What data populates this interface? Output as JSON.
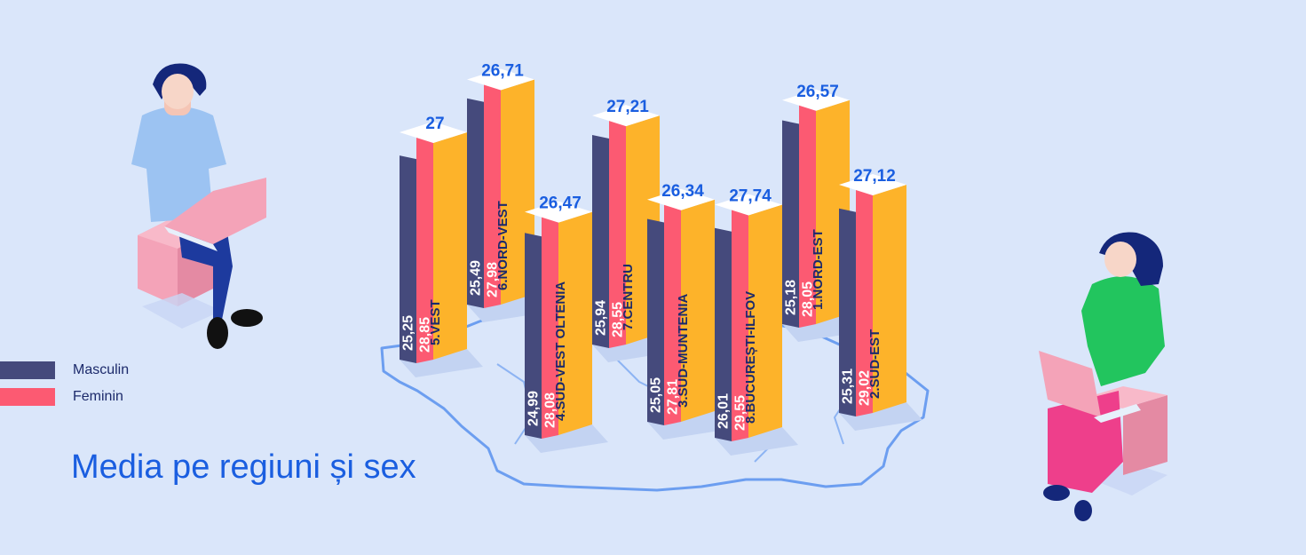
{
  "colors": {
    "background": "#dae6fa",
    "masculin": "#454a7c",
    "feminin": "#fc5a72",
    "total_bar": "#fdb32a",
    "value_text": "#1a5ee0",
    "map_outline": "#6c9ef0",
    "label_text": "#1c2a6b"
  },
  "legend": {
    "masculin": "Masculin",
    "feminin": "Feminin"
  },
  "title": "Media pe regiuni și sex",
  "chart_data": {
    "type": "bar",
    "title": "Media pe regiuni și sex",
    "categories": [
      "5.VEST",
      "6.NORD-VEST",
      "4.SUD-VEST OLTENIA",
      "7.CENTRU",
      "3.SUD-MUNTENIA",
      "8.BUCUREȘTI-ILFOV",
      "1.NORD-EST",
      "2.SUD-EST"
    ],
    "series": [
      {
        "name": "Masculin",
        "values": [
          25.25,
          25.49,
          24.99,
          25.94,
          25.05,
          26.01,
          25.18,
          25.31
        ],
        "labels": [
          "25,25",
          "25,49",
          "24,99",
          "25,94",
          "25,05",
          "26,01",
          "25,18",
          "25,31"
        ]
      },
      {
        "name": "Feminin",
        "values": [
          28.85,
          27.98,
          28.08,
          28.55,
          27.81,
          29.55,
          28.05,
          29.02
        ],
        "labels": [
          "28,85",
          "27,98",
          "28,08",
          "28,55",
          "27,81",
          "29,55",
          "28,05",
          "29,02"
        ]
      }
    ],
    "totals": [
      27,
      26.71,
      26.47,
      27.21,
      26.34,
      27.74,
      26.57,
      27.12
    ],
    "total_labels": [
      "27",
      "26,71",
      "26,47",
      "27,21",
      "26,34",
      "27,74",
      "26,57",
      "27,12"
    ],
    "legend_position": "left"
  }
}
